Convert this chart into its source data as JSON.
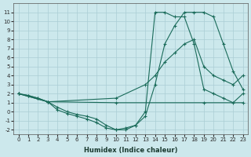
{
  "xlabel": "Humidex (Indice chaleur)",
  "bg_color": "#cce8ec",
  "grid_color": "#aacdd4",
  "line_color": "#1a6b5a",
  "xlim": [
    -0.5,
    23.5
  ],
  "ylim": [
    -2.5,
    12
  ],
  "xticks": [
    0,
    1,
    2,
    3,
    4,
    5,
    6,
    7,
    8,
    9,
    10,
    11,
    12,
    13,
    14,
    15,
    16,
    17,
    18,
    19,
    20,
    21,
    22,
    23
  ],
  "yticks": [
    -2,
    -1,
    0,
    1,
    2,
    3,
    4,
    5,
    6,
    7,
    8,
    9,
    10,
    11
  ],
  "curves": [
    {
      "x": [
        0,
        1,
        2,
        3,
        4,
        5,
        6,
        7,
        8,
        9,
        10,
        11,
        12,
        13,
        14,
        15,
        16,
        17,
        18,
        19,
        20,
        21,
        22,
        23
      ],
      "y": [
        2,
        1.8,
        1.5,
        1.1,
        0.5,
        0.0,
        -0.3,
        -0.5,
        -0.8,
        -1.5,
        -2.0,
        -2.0,
        -1.5,
        0.0,
        11.0,
        11.0,
        10.5,
        10.5,
        7.5,
        2.5,
        2.0,
        1.5,
        1.0,
        2.0
      ]
    },
    {
      "x": [
        0,
        3,
        10,
        19,
        23
      ],
      "y": [
        2,
        1.1,
        1.0,
        1.0,
        1.0
      ]
    },
    {
      "x": [
        0,
        3,
        10,
        13,
        14,
        15,
        16,
        17,
        18,
        19,
        20,
        21,
        22,
        23
      ],
      "y": [
        2,
        1.1,
        1.5,
        3.0,
        4.0,
        5.5,
        6.5,
        7.5,
        8.0,
        5.0,
        4.0,
        3.5,
        3.0,
        4.0
      ]
    },
    {
      "x": [
        0,
        1,
        2,
        3,
        4,
        5,
        6,
        7,
        8,
        9,
        10,
        11,
        12,
        13,
        14,
        15,
        16,
        17,
        18,
        19,
        20,
        21,
        22,
        23
      ],
      "y": [
        2,
        1.8,
        1.5,
        1.1,
        0.2,
        -0.2,
        -0.5,
        -0.8,
        -1.2,
        -1.8,
        -2.0,
        -1.8,
        -1.5,
        -0.5,
        3.0,
        7.5,
        9.5,
        11.0,
        11.0,
        11.0,
        10.5,
        7.5,
        4.5,
        2.5
      ]
    }
  ]
}
